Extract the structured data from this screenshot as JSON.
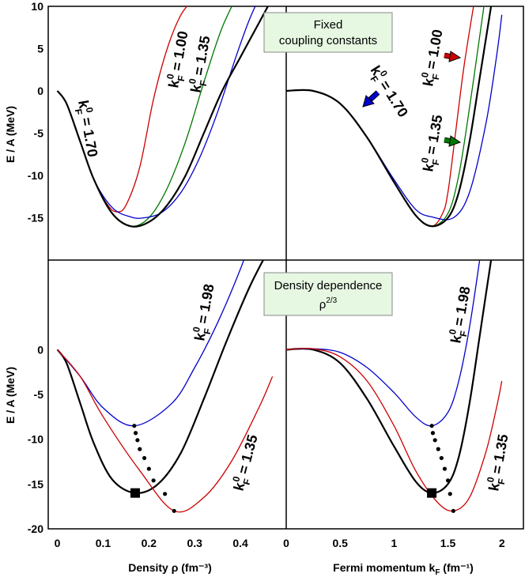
{
  "figure": {
    "y_label": "E / A (MeV)",
    "x_label_left": "Density ρ (fm⁻³)",
    "x_label_right": "Fermi momentum k",
    "x_label_right_sub": "F",
    "x_label_right_unit": " (fm⁻¹)"
  },
  "chart_data": [
    {
      "id": "top-left",
      "type": "line",
      "xlabel": "",
      "ylabel": "E / A (MeV)",
      "xlim": [
        -0.02,
        0.5
      ],
      "ylim": [
        -20,
        10
      ],
      "yticks": [
        10,
        5,
        0,
        -5,
        -10,
        -15
      ],
      "series": [
        {
          "name": "kF0 = 1.00",
          "color": "#cc0000",
          "x": [
            0.0,
            0.02,
            0.05,
            0.08,
            0.11,
            0.13,
            0.15,
            0.18,
            0.21,
            0.24,
            0.27,
            0.3
          ],
          "y": [
            0.0,
            -1.5,
            -6.0,
            -10.5,
            -13.5,
            -14.3,
            -13.5,
            -9.0,
            -1.0,
            5.0,
            9.0,
            11.0
          ]
        },
        {
          "name": "kF0 = 1.35",
          "color": "#007700",
          "x": [
            0.0,
            0.02,
            0.05,
            0.08,
            0.12,
            0.16,
            0.2,
            0.24,
            0.28,
            0.32,
            0.36,
            0.4
          ],
          "y": [
            0.0,
            -1.5,
            -6.0,
            -10.5,
            -14.5,
            -16.0,
            -15.0,
            -11.5,
            -6.0,
            1.0,
            7.5,
            12.0
          ]
        },
        {
          "name": "kF0 = 1.70",
          "color": "#0000cc",
          "x": [
            0.0,
            0.02,
            0.05,
            0.08,
            0.12,
            0.16,
            0.19,
            0.23,
            0.27,
            0.31,
            0.35,
            0.39,
            0.42,
            0.45
          ],
          "y": [
            0.0,
            -1.5,
            -6.0,
            -10.5,
            -13.8,
            -14.9,
            -15.0,
            -14.3,
            -12.0,
            -8.0,
            -2.5,
            4.0,
            8.5,
            12.0
          ]
        },
        {
          "name": "exact",
          "color": "#000000",
          "x": [
            0.0,
            0.02,
            0.05,
            0.08,
            0.12,
            0.16,
            0.2,
            0.24,
            0.28,
            0.32,
            0.36,
            0.4,
            0.44,
            0.47
          ],
          "y": [
            0.0,
            -1.5,
            -6.0,
            -10.5,
            -14.5,
            -16.0,
            -15.5,
            -13.5,
            -10.0,
            -5.0,
            0.0,
            4.0,
            8.0,
            11.0
          ]
        }
      ]
    },
    {
      "id": "top-right",
      "type": "line",
      "xlim": [
        0,
        2.2
      ],
      "ylim": [
        -20,
        10
      ],
      "series": [
        {
          "name": "kF0 = 1.00",
          "color": "#cc0000",
          "x": [
            0.0,
            0.25,
            0.5,
            0.75,
            1.0,
            1.2,
            1.35,
            1.45,
            1.5,
            1.57,
            1.65,
            1.75
          ],
          "y": [
            0.0,
            0.0,
            -1.5,
            -5.5,
            -10.8,
            -14.7,
            -16.0,
            -14.5,
            -12.0,
            -5.0,
            3.0,
            11.0
          ]
        },
        {
          "name": "kF0 = 1.35",
          "color": "#007700",
          "x": [
            0.0,
            0.25,
            0.5,
            0.75,
            1.0,
            1.2,
            1.35,
            1.5,
            1.6,
            1.7,
            1.8,
            1.85
          ],
          "y": [
            0.0,
            0.0,
            -1.5,
            -5.5,
            -10.8,
            -14.7,
            -16.0,
            -14.5,
            -10.0,
            -2.0,
            7.0,
            11.5
          ]
        },
        {
          "name": "kF0 = 1.70",
          "color": "#0000cc",
          "x": [
            0.0,
            0.25,
            0.5,
            0.75,
            1.0,
            1.2,
            1.35,
            1.55,
            1.7,
            1.85,
            1.95,
            2.0
          ],
          "y": [
            0.0,
            0.0,
            -1.5,
            -5.5,
            -10.5,
            -14.0,
            -14.9,
            -15.0,
            -12.0,
            -4.0,
            4.0,
            9.0
          ]
        },
        {
          "name": "exact",
          "color": "#000000",
          "x": [
            0.0,
            0.25,
            0.5,
            0.75,
            1.0,
            1.2,
            1.35,
            1.5,
            1.6,
            1.7,
            1.8,
            1.9
          ],
          "y": [
            0.0,
            0.0,
            -1.5,
            -5.5,
            -10.8,
            -14.7,
            -16.0,
            -15.0,
            -12.0,
            -6.0,
            2.0,
            10.0
          ]
        }
      ]
    },
    {
      "id": "bottom-left",
      "type": "line",
      "xlabel": "Density ρ (fm⁻³)",
      "ylabel": "E / A (MeV)",
      "xlim": [
        -0.02,
        0.5
      ],
      "ylim": [
        -20,
        10
      ],
      "xticks": [
        0,
        0.1,
        0.2,
        0.3,
        0.4
      ],
      "xtick_labels": [
        "0",
        "0.1",
        "0.2",
        "0.3",
        "0.4"
      ],
      "yticks": [
        0,
        -5,
        -10,
        -15,
        -20
      ],
      "saturation_point": {
        "x": 0.17,
        "y": -16.0
      },
      "minima": [
        {
          "x": 0.168,
          "y": -8.5
        },
        {
          "x": 0.171,
          "y": -9.3
        },
        {
          "x": 0.175,
          "y": -10.1
        },
        {
          "x": 0.18,
          "y": -11.1
        },
        {
          "x": 0.19,
          "y": -12.1
        },
        {
          "x": 0.2,
          "y": -13.3
        },
        {
          "x": 0.21,
          "y": -14.6
        },
        {
          "x": 0.235,
          "y": -16.1
        },
        {
          "x": 0.255,
          "y": -18.0
        }
      ],
      "series": [
        {
          "name": "exact",
          "color": "#000000",
          "x": [
            0.0,
            0.02,
            0.05,
            0.08,
            0.12,
            0.17,
            0.22,
            0.27,
            0.32,
            0.37,
            0.42,
            0.46
          ],
          "y": [
            0.0,
            -1.5,
            -6.0,
            -10.5,
            -14.5,
            -16.0,
            -15.0,
            -11.5,
            -5.5,
            1.0,
            7.0,
            11.0
          ]
        },
        {
          "name": "kF0 = 1.98",
          "color": "#0000cc",
          "x": [
            0.0,
            0.05,
            0.1,
            0.168,
            0.25,
            0.3,
            0.35,
            0.4,
            0.42
          ],
          "y": [
            0.0,
            -3.0,
            -6.5,
            -8.5,
            -6.0,
            -2.0,
            3.0,
            9.0,
            12.0
          ]
        },
        {
          "name": "kF0 = 1.35",
          "color": "#cc0000",
          "x": [
            0.0,
            0.05,
            0.1,
            0.18,
            0.255,
            0.32,
            0.38,
            0.44,
            0.47
          ],
          "y": [
            0.0,
            -3.0,
            -7.5,
            -13.5,
            -18.0,
            -16.5,
            -12.5,
            -6.5,
            -3.0
          ]
        }
      ]
    },
    {
      "id": "bottom-right",
      "type": "line",
      "xlabel": "Fermi momentum kF (fm⁻¹)",
      "xlim": [
        0,
        2.2
      ],
      "ylim": [
        -20,
        10
      ],
      "xticks": [
        0,
        0.5,
        1,
        1.5,
        2
      ],
      "xtick_labels": [
        "0",
        "0.5",
        "1",
        "1.5",
        "2"
      ],
      "saturation_point": {
        "x": 1.35,
        "y": -16.0
      },
      "minima": [
        {
          "x": 1.35,
          "y": -8.5
        },
        {
          "x": 1.36,
          "y": -9.3
        },
        {
          "x": 1.38,
          "y": -10.1
        },
        {
          "x": 1.41,
          "y": -11.1
        },
        {
          "x": 1.44,
          "y": -12.1
        },
        {
          "x": 1.47,
          "y": -13.3
        },
        {
          "x": 1.5,
          "y": -14.6
        },
        {
          "x": 1.52,
          "y": -16.1
        },
        {
          "x": 1.55,
          "y": -18.0
        }
      ],
      "series": [
        {
          "name": "exact",
          "color": "#000000",
          "x": [
            0.0,
            0.25,
            0.5,
            0.75,
            1.0,
            1.2,
            1.35,
            1.5,
            1.6,
            1.7,
            1.8,
            1.9
          ],
          "y": [
            0.0,
            0.0,
            -1.5,
            -5.5,
            -10.8,
            -14.7,
            -16.0,
            -15.0,
            -12.0,
            -6.0,
            2.0,
            10.0
          ]
        },
        {
          "name": "kF0 = 1.98",
          "color": "#0000cc",
          "x": [
            0.0,
            0.25,
            0.5,
            0.75,
            1.0,
            1.2,
            1.35,
            1.5,
            1.6,
            1.7,
            1.8
          ],
          "y": [
            0.0,
            0.1,
            -0.3,
            -2.0,
            -4.8,
            -7.5,
            -8.5,
            -7.0,
            -3.5,
            2.5,
            10.5
          ]
        },
        {
          "name": "kF0 = 1.35",
          "color": "#cc0000",
          "x": [
            0.0,
            0.25,
            0.5,
            0.75,
            1.0,
            1.2,
            1.4,
            1.55,
            1.7,
            1.85,
            1.95,
            2.0
          ],
          "y": [
            0.0,
            0.1,
            -0.8,
            -3.5,
            -8.5,
            -13.5,
            -17.0,
            -18.0,
            -16.5,
            -11.5,
            -6.5,
            -3.5
          ]
        }
      ]
    }
  ],
  "labels": {
    "tl_100": {
      "k": "k",
      "sup": "0",
      "sub": "F",
      "val": " = 1.00"
    },
    "tl_135": {
      "k": "k",
      "sup": "0",
      "sub": "F",
      "val": " = 1.35"
    },
    "tl_170": {
      "k": "k",
      "sup": "0",
      "sub": "F",
      "val": " = 1.70"
    },
    "tr_100": {
      "k": "k",
      "sup": "0",
      "sub": "F",
      "val": " = 1.00"
    },
    "tr_135": {
      "k": "k",
      "sup": "0",
      "sub": "F",
      "val": " = 1.35"
    },
    "tr_170": {
      "k": "k",
      "sup": "0",
      "sub": "F",
      "val": " = 1.70"
    },
    "bl_198": {
      "k": "k",
      "sup": "0",
      "sub": "F",
      "val": " = 1.98"
    },
    "bl_135": {
      "k": "k",
      "sup": "0",
      "sub": "F",
      "val": " = 1.35"
    },
    "br_198": {
      "k": "k",
      "sup": "0",
      "sub": "F",
      "val": " = 1.98"
    },
    "br_135": {
      "k": "k",
      "sup": "0",
      "sub": "F",
      "val": " = 1.35"
    }
  },
  "boxes": {
    "fixed": {
      "line1": "Fixed",
      "line2": "coupling constants",
      "fill": "#e6f7e2"
    },
    "density": {
      "line1": "Density dependence",
      "line2": "ρ",
      "sup": "2/3",
      "fill": "#e6f7e2"
    }
  },
  "arrows": {
    "red": "#cc0000",
    "green": "#007700",
    "blue": "#0000cc"
  },
  "ticks_y_top": [
    "10",
    "5",
    "0",
    "-5",
    "-10",
    "-15"
  ],
  "ticks_y_bottom": [
    "0",
    "-5",
    "-10",
    "-15",
    "-20"
  ]
}
